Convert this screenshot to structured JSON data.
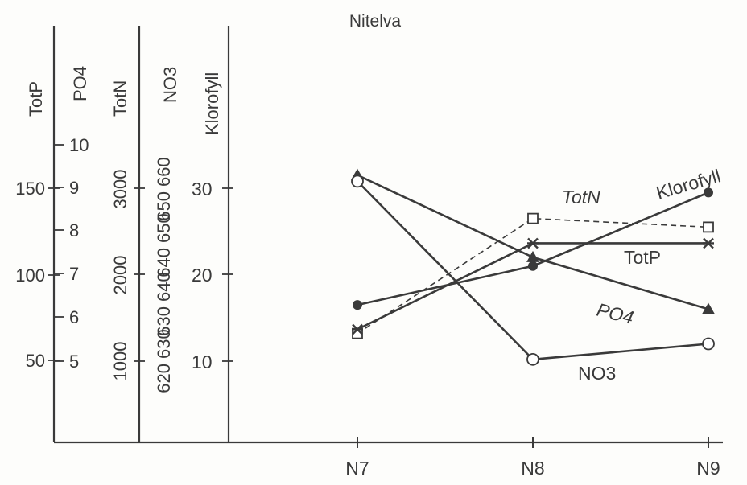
{
  "chart_data": {
    "type": "line",
    "title": "Nitelva",
    "categories": [
      "N7",
      "N8",
      "N9"
    ],
    "axes": [
      {
        "name": "TotP",
        "ticks": [
          "50",
          "100",
          "150"
        ]
      },
      {
        "name": "PO4",
        "ticks": [
          "5",
          "6",
          "7",
          "8",
          "9",
          "10"
        ]
      },
      {
        "name": "TotN",
        "ticks": [
          "1000",
          "2000",
          "3000"
        ]
      },
      {
        "name": "NO3",
        "ticks": [
          "620 630",
          "630 640",
          "640 650",
          "650 660"
        ]
      },
      {
        "name": "Klorofyll",
        "ticks": [
          "10",
          "20",
          "30"
        ]
      }
    ],
    "series": [
      {
        "name": "Klorofyll",
        "marker": "filled-circle",
        "style": "solid",
        "values": [
          16.5,
          21,
          29.5
        ]
      },
      {
        "name": "TotN",
        "marker": "open-square",
        "style": "dashed",
        "values": [
          1320,
          2650,
          2550
        ]
      },
      {
        "name": "TotP",
        "marker": "star",
        "style": "solid",
        "values": [
          68,
          118,
          118
        ]
      },
      {
        "name": "PO4",
        "marker": "triangle",
        "style": "solid",
        "values": [
          9.3,
          7.4,
          6.2
        ]
      },
      {
        "name": "NO3",
        "marker": "open-circle",
        "style": "solid",
        "values": [
          30.8,
          10.2,
          12
        ]
      }
    ]
  }
}
